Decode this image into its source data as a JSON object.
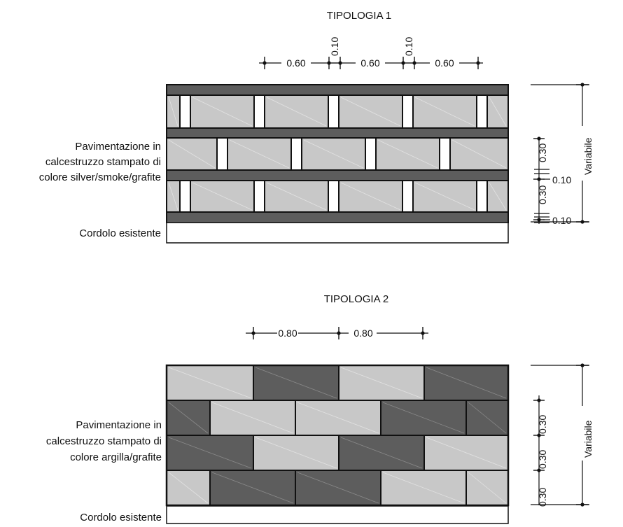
{
  "colors": {
    "dark": "#5d5d5d",
    "light": "#c8c8c8",
    "white": "#ffffff",
    "stroke": "#111111"
  },
  "tipologia1": {
    "title": "TIPOLOGIA 1",
    "dims_top": {
      "block": "0.60",
      "joint": "0.10"
    },
    "label_lines": [
      "Pavimentazione in",
      "calcestruzzo stampato di",
      "colore silver/smoke/grafite"
    ],
    "curb_label": "Cordolo esistente",
    "dims_right": {
      "band": "0.30",
      "strip": "0.10",
      "total": "Variabile"
    }
  },
  "tipologia2": {
    "title": "TIPOLOGIA 2",
    "dims_top": {
      "block": "0.80"
    },
    "label_lines": [
      "Pavimentazione in",
      "calcestruzzo stampato di",
      "colore argilla/grafite"
    ],
    "curb_label": "Cordolo esistente",
    "dims_right": {
      "band": "0.30",
      "total": "Variabile"
    }
  }
}
